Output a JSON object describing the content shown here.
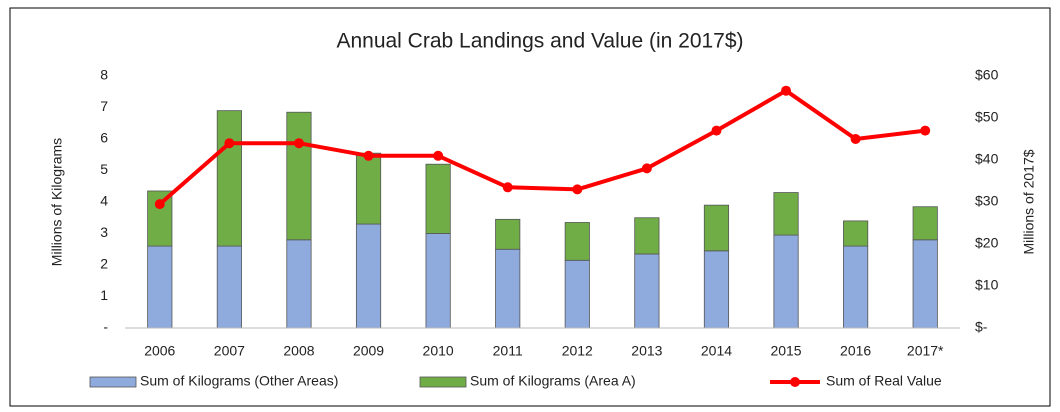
{
  "chart_data": {
    "type": "bar",
    "title": "Annual Crab Landings and Value (in 2017$)",
    "ylabel": "Millions of Kilograms",
    "y2label": "Millions of 2017$",
    "categories": [
      "2006",
      "2007",
      "2008",
      "2009",
      "2010",
      "2011",
      "2012",
      "2013",
      "2014",
      "2015",
      "2016",
      "2017*"
    ],
    "series": [
      {
        "name": "Sum of Kilograms (Other Areas)",
        "color": "#8faadc",
        "stack": true,
        "values": [
          2.6,
          2.6,
          2.8,
          3.3,
          3.0,
          2.5,
          2.15,
          2.35,
          2.45,
          2.95,
          2.6,
          2.8
        ]
      },
      {
        "name": "Sum of Kilograms (Area A)",
        "color": "#70ad47",
        "stack": true,
        "values": [
          1.75,
          4.3,
          4.05,
          2.25,
          2.2,
          0.95,
          1.2,
          1.15,
          1.45,
          1.35,
          0.8,
          1.05
        ]
      },
      {
        "name": "Sum of Real Value",
        "color": "#ff0000",
        "type": "line",
        "axis": "y2",
        "values": [
          29.5,
          44,
          44,
          41,
          41,
          33.5,
          33,
          38,
          47,
          56.5,
          45,
          47
        ]
      }
    ],
    "ylim": [
      0,
      8
    ],
    "yticks": [
      {
        "value": 0,
        "label": "-"
      },
      1,
      2,
      3,
      4,
      5,
      6,
      7,
      8
    ],
    "y2lim": [
      0,
      60
    ],
    "y2ticks": [
      {
        "value": 0,
        "label": "$-"
      },
      {
        "value": 10,
        "label": "$10"
      },
      {
        "value": 20,
        "label": "$20"
      },
      {
        "value": 30,
        "label": "$30"
      },
      {
        "value": 40,
        "label": "$40"
      },
      {
        "value": 50,
        "label": "$50"
      },
      {
        "value": 60,
        "label": "$60"
      }
    ],
    "grid": false,
    "legend": "bottom"
  }
}
